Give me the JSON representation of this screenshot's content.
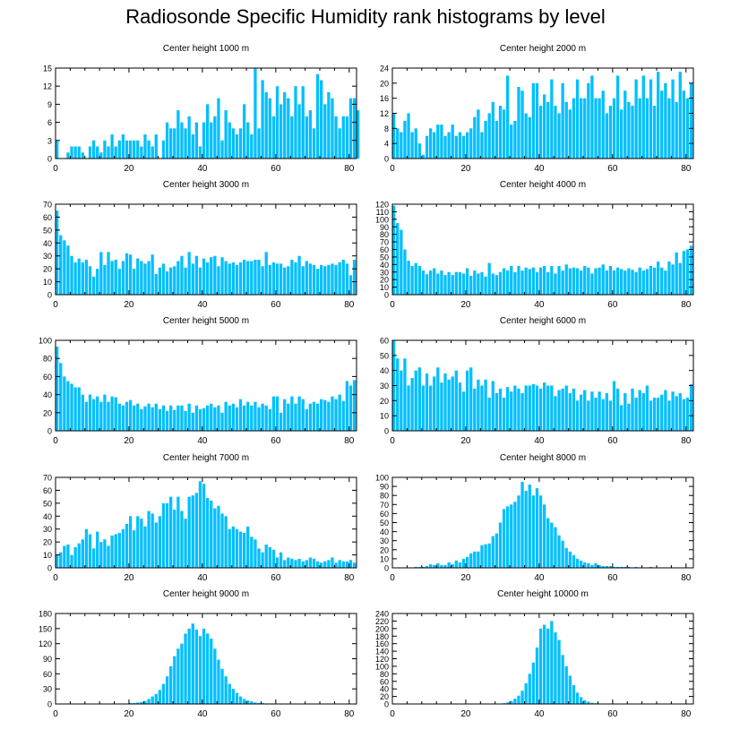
{
  "title": "Radiosonde Specific Humidity rank histograms by level",
  "bar_color": "#00bfff",
  "chart_data": [
    {
      "type": "bar",
      "title": "Center height 1000 m",
      "xlim": [
        0,
        82
      ],
      "xticks": [
        0,
        20,
        40,
        60,
        80
      ],
      "ylim": [
        0,
        15
      ],
      "yticks": [
        0,
        3,
        6,
        9,
        12,
        15
      ],
      "values": [
        3,
        0,
        0,
        1,
        2,
        2,
        2,
        1,
        0,
        2,
        3,
        2,
        1,
        3,
        2,
        4,
        2,
        3,
        4,
        3,
        3,
        3,
        3,
        2,
        4,
        3,
        2,
        4,
        0,
        3,
        6,
        5,
        5,
        8,
        6,
        5,
        7,
        4,
        6,
        2,
        6,
        9,
        6,
        7,
        10,
        3,
        8,
        6,
        5,
        4,
        5,
        9,
        6,
        4,
        15,
        5,
        13,
        11,
        10,
        7,
        12,
        9,
        11,
        10,
        7,
        12,
        9,
        12,
        7,
        8,
        5,
        14,
        13,
        9,
        11,
        10,
        7,
        5,
        7,
        7,
        10,
        10,
        8
      ]
    },
    {
      "type": "bar",
      "title": "Center height 2000 m",
      "xlim": [
        0,
        82
      ],
      "xticks": [
        0,
        20,
        40,
        60,
        80
      ],
      "ylim": [
        0,
        24
      ],
      "yticks": [
        0,
        4,
        8,
        12,
        16,
        20,
        24
      ],
      "values": [
        12,
        8,
        7,
        10,
        12,
        7,
        8,
        4,
        1,
        6,
        8,
        7,
        9,
        9,
        6,
        7,
        9,
        6,
        7,
        6,
        7,
        8,
        11,
        13,
        7,
        10,
        12,
        15,
        10,
        14,
        13,
        22,
        9,
        10,
        19,
        18,
        12,
        11,
        20,
        20,
        14,
        17,
        15,
        21,
        14,
        12,
        20,
        15,
        13,
        16,
        21,
        16,
        16,
        20,
        22,
        16,
        16,
        18,
        12,
        14,
        16,
        22,
        13,
        18,
        15,
        14,
        21,
        16,
        22,
        16,
        21,
        14,
        23,
        18,
        20,
        16,
        21,
        15,
        23,
        18,
        16,
        20
      ]
    },
    {
      "type": "bar",
      "title": "Center height 3000 m",
      "xlim": [
        0,
        82
      ],
      "xticks": [
        0,
        20,
        40,
        60,
        80
      ],
      "ylim": [
        0,
        70
      ],
      "yticks": [
        0,
        10,
        20,
        30,
        40,
        50,
        60,
        70
      ],
      "values": [
        65,
        46,
        42,
        38,
        30,
        25,
        28,
        25,
        27,
        22,
        14,
        20,
        33,
        23,
        33,
        26,
        27,
        20,
        26,
        32,
        31,
        20,
        28,
        26,
        24,
        26,
        31,
        16,
        21,
        24,
        18,
        21,
        22,
        26,
        30,
        21,
        33,
        24,
        30,
        21,
        28,
        25,
        29,
        30,
        22,
        29,
        26,
        24,
        25,
        23,
        25,
        27,
        26,
        26,
        27,
        27,
        22,
        33,
        23,
        25,
        24,
        24,
        21,
        22,
        27,
        25,
        30,
        22,
        26,
        24,
        23,
        20,
        23,
        22,
        23,
        24,
        23,
        25,
        27,
        24,
        15,
        27
      ]
    },
    {
      "type": "bar",
      "title": "Center height 4000 m",
      "xlim": [
        0,
        82
      ],
      "xticks": [
        0,
        20,
        40,
        60,
        80
      ],
      "ylim": [
        0,
        120
      ],
      "yticks": [
        0,
        10,
        20,
        30,
        40,
        50,
        60,
        70,
        80,
        90,
        100,
        110,
        120
      ],
      "values": [
        118,
        95,
        86,
        60,
        45,
        38,
        42,
        38,
        32,
        27,
        32,
        35,
        28,
        32,
        26,
        30,
        26,
        30,
        30,
        28,
        35,
        25,
        32,
        28,
        30,
        24,
        42,
        28,
        26,
        30,
        35,
        32,
        38,
        30,
        38,
        32,
        36,
        34,
        36,
        30,
        36,
        38,
        30,
        38,
        28,
        38,
        32,
        40,
        35,
        36,
        35,
        32,
        38,
        36,
        28,
        35,
        36,
        40,
        32,
        38,
        32,
        36,
        34,
        32,
        35,
        33,
        30,
        36,
        32,
        34,
        38,
        36,
        44,
        36,
        32,
        44,
        40,
        56,
        42,
        58,
        60,
        65
      ]
    },
    {
      "type": "bar",
      "title": "Center height 5000 m",
      "xlim": [
        0,
        82
      ],
      "xticks": [
        0,
        20,
        40,
        60,
        80
      ],
      "ylim": [
        0,
        100
      ],
      "yticks": [
        0,
        20,
        40,
        60,
        80,
        100
      ],
      "values": [
        93,
        75,
        60,
        55,
        52,
        48,
        48,
        40,
        32,
        40,
        35,
        38,
        32,
        40,
        32,
        38,
        37,
        30,
        28,
        32,
        34,
        28,
        30,
        24,
        27,
        30,
        26,
        30,
        24,
        28,
        22,
        28,
        23,
        28,
        28,
        22,
        30,
        20,
        28,
        24,
        25,
        28,
        30,
        26,
        28,
        20,
        32,
        28,
        30,
        26,
        35,
        28,
        32,
        28,
        32,
        26,
        30,
        28,
        24,
        38,
        38,
        20,
        35,
        30,
        38,
        30,
        38,
        35,
        24,
        30,
        32,
        30,
        35,
        34,
        32,
        38,
        35,
        40,
        33,
        55,
        50,
        56
      ]
    },
    {
      "type": "bar",
      "title": "Center height 6000 m",
      "xlim": [
        0,
        82
      ],
      "xticks": [
        0,
        20,
        40,
        60,
        80
      ],
      "ylim": [
        0,
        60
      ],
      "yticks": [
        0,
        10,
        20,
        30,
        40,
        50,
        60
      ],
      "values": [
        60,
        48,
        40,
        48,
        30,
        35,
        40,
        42,
        30,
        38,
        30,
        36,
        42,
        32,
        38,
        34,
        36,
        40,
        32,
        26,
        40,
        42,
        28,
        34,
        30,
        34,
        22,
        33,
        25,
        28,
        22,
        29,
        26,
        30,
        28,
        25,
        30,
        30,
        31,
        30,
        28,
        32,
        30,
        30,
        23,
        27,
        28,
        30,
        25,
        28,
        20,
        24,
        27,
        20,
        26,
        22,
        26,
        21,
        25,
        20,
        33,
        28,
        17,
        25,
        18,
        28,
        22,
        27,
        25,
        30,
        20,
        22,
        22,
        24,
        27,
        20,
        26,
        23,
        25,
        21,
        22,
        31
      ]
    },
    {
      "type": "bar",
      "title": "Center height 7000 m",
      "xlim": [
        0,
        82
      ],
      "xticks": [
        0,
        20,
        40,
        60,
        80
      ],
      "ylim": [
        0,
        70
      ],
      "yticks": [
        0,
        10,
        20,
        30,
        40,
        50,
        60,
        70
      ],
      "values": [
        10,
        12,
        17,
        18,
        10,
        16,
        19,
        22,
        30,
        26,
        15,
        28,
        20,
        22,
        17,
        25,
        26,
        27,
        30,
        34,
        40,
        29,
        40,
        38,
        32,
        44,
        42,
        35,
        40,
        50,
        50,
        55,
        45,
        55,
        44,
        38,
        55,
        56,
        58,
        67,
        65,
        54,
        52,
        46,
        48,
        42,
        40,
        30,
        32,
        30,
        28,
        27,
        32,
        24,
        22,
        15,
        12,
        18,
        16,
        14,
        8,
        12,
        6,
        8,
        7,
        6,
        7,
        5,
        6,
        8,
        7,
        5,
        4,
        5,
        6,
        8,
        4,
        6,
        5,
        5,
        6,
        4
      ]
    },
    {
      "type": "bar",
      "title": "Center height 8000 m",
      "xlim": [
        0,
        82
      ],
      "xticks": [
        0,
        20,
        40,
        60,
        80
      ],
      "ylim": [
        0,
        100
      ],
      "yticks": [
        0,
        10,
        20,
        30,
        40,
        50,
        60,
        70,
        80,
        90,
        100
      ],
      "values": [
        0,
        0,
        0,
        0,
        0,
        0,
        1,
        1,
        1,
        2,
        4,
        3,
        5,
        3,
        3,
        6,
        4,
        8,
        6,
        10,
        12,
        16,
        18,
        18,
        25,
        26,
        27,
        35,
        38,
        50,
        65,
        68,
        70,
        73,
        80,
        95,
        85,
        92,
        80,
        88,
        80,
        70,
        55,
        50,
        45,
        36,
        30,
        22,
        18,
        14,
        10,
        8,
        6,
        5,
        3,
        5,
        3,
        2,
        2,
        2,
        1,
        1,
        1,
        1,
        1,
        0,
        1,
        0,
        0,
        0,
        1,
        0,
        0,
        0,
        0,
        0,
        0,
        0,
        0,
        0,
        0,
        0
      ]
    },
    {
      "type": "bar",
      "title": "Center height 9000 m",
      "xlim": [
        0,
        82
      ],
      "xticks": [
        0,
        20,
        40,
        60,
        80
      ],
      "ylim": [
        0,
        180
      ],
      "yticks": [
        0,
        30,
        60,
        90,
        120,
        150,
        180
      ],
      "values": [
        0,
        0,
        0,
        0,
        0,
        0,
        0,
        0,
        0,
        0,
        0,
        0,
        0,
        0,
        0,
        0,
        0,
        1,
        1,
        1,
        2,
        2,
        3,
        4,
        6,
        10,
        15,
        20,
        28,
        40,
        55,
        75,
        95,
        110,
        120,
        140,
        150,
        160,
        148,
        135,
        150,
        140,
        130,
        110,
        88,
        70,
        55,
        40,
        30,
        22,
        15,
        10,
        7,
        5,
        3,
        2,
        2,
        1,
        1,
        1,
        0,
        1,
        0,
        0,
        0,
        0,
        0,
        0,
        0,
        0,
        0,
        0,
        0,
        0,
        0,
        0,
        0,
        0,
        0,
        0,
        0,
        0
      ]
    },
    {
      "type": "bar",
      "title": "Center height 10000 m",
      "xlim": [
        0,
        82
      ],
      "xticks": [
        0,
        20,
        40,
        60,
        80
      ],
      "ylim": [
        0,
        240
      ],
      "yticks": [
        0,
        20,
        40,
        60,
        80,
        100,
        120,
        140,
        160,
        180,
        200,
        220,
        240
      ],
      "values": [
        0,
        0,
        0,
        0,
        0,
        0,
        0,
        0,
        0,
        0,
        0,
        0,
        0,
        0,
        0,
        0,
        0,
        0,
        0,
        0,
        0,
        0,
        0,
        0,
        0,
        0,
        0,
        0,
        0,
        1,
        2,
        4,
        8,
        14,
        22,
        35,
        55,
        80,
        110,
        150,
        200,
        210,
        200,
        220,
        190,
        170,
        130,
        100,
        75,
        50,
        30,
        18,
        10,
        6,
        3,
        2,
        1,
        1,
        0,
        1,
        0,
        0,
        0,
        0,
        0,
        0,
        0,
        0,
        0,
        0,
        0,
        0,
        0,
        0,
        0,
        0,
        0,
        0,
        0,
        0,
        0,
        0
      ]
    }
  ]
}
